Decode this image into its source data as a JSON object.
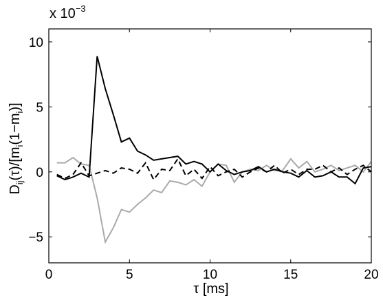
{
  "chart_data": {
    "type": "line",
    "title": "",
    "xlabel": "τ [ms]",
    "ylabel_parts": {
      "main1": "D",
      "sub1": "ij",
      "main2": "(τ)/[m",
      "sub2": "i",
      "main3": "(1−m",
      "sub3": "i",
      "main4": ")]"
    },
    "exponent_label": {
      "base": "x 10",
      "power": "−3"
    },
    "xlim": [
      0,
      20
    ],
    "ylim": [
      -7,
      11
    ],
    "x_ticks": [
      0,
      5,
      10,
      15,
      20
    ],
    "x_tick_labels": [
      "0",
      "5",
      "10",
      "15",
      "20"
    ],
    "y_ticks": [
      -5,
      0,
      5,
      10
    ],
    "y_tick_labels": [
      "−5",
      "0",
      "5",
      "10"
    ],
    "grid": false,
    "legend": "none",
    "series": [
      {
        "color": "#000000",
        "style": "solid",
        "x": [
          0.5,
          1.0,
          1.5,
          2.0,
          2.5,
          3.0,
          3.5,
          4.0,
          4.5,
          5.0,
          5.5,
          6.0,
          6.5,
          7.0,
          7.5,
          8.0,
          8.5,
          9.0,
          9.5,
          10.0,
          10.5,
          11.0,
          11.5,
          12.0,
          12.5,
          13.0,
          13.5,
          14.0,
          14.5,
          15.0,
          15.5,
          16.0,
          16.5,
          17.0,
          17.5,
          18.0,
          18.5,
          19.0,
          19.5,
          20.0
        ],
        "y": [
          -0.3,
          -0.6,
          -0.4,
          -0.1,
          -0.4,
          8.9,
          6.4,
          4.4,
          2.3,
          2.6,
          1.6,
          1.3,
          0.9,
          1.0,
          1.1,
          1.2,
          0.6,
          0.8,
          0.6,
          0.0,
          0.6,
          0.1,
          -0.2,
          0.0,
          0.1,
          0.4,
          0.0,
          0.2,
          0.0,
          -0.1,
          -0.4,
          0.1,
          -0.4,
          -0.3,
          0.0,
          -0.4,
          -0.4,
          -0.9,
          0.3,
          0.4
        ]
      },
      {
        "color": "#000000",
        "style": "dashed",
        "x": [
          0.5,
          1.0,
          1.5,
          2.0,
          2.5,
          3.0,
          3.5,
          4.0,
          4.5,
          5.0,
          5.5,
          6.0,
          6.5,
          7.0,
          7.5,
          8.0,
          8.5,
          9.0,
          9.5,
          10.0,
          10.5,
          11.0,
          11.5,
          12.0,
          12.5,
          13.0,
          13.5,
          14.0,
          14.5,
          15.0,
          15.5,
          16.0,
          16.5,
          17.0,
          17.5,
          18.0,
          18.5,
          19.0,
          19.5,
          20.0
        ],
        "y": [
          -0.2,
          -0.5,
          -0.2,
          0.7,
          -0.3,
          -0.1,
          0.1,
          -0.1,
          0.3,
          0.2,
          -0.1,
          0.7,
          -0.6,
          0.2,
          0.1,
          1.0,
          -0.3,
          0.2,
          -0.5,
          0.4,
          -0.3,
          0.0,
          0.2,
          -0.4,
          0.0,
          0.3,
          0.0,
          0.5,
          -0.1,
          0.2,
          -0.2,
          0.2,
          0.2,
          0.5,
          0.0,
          0.3,
          -0.2,
          0.2,
          0.5,
          0.0
        ]
      },
      {
        "color": "#aaaaaa",
        "style": "solid",
        "x": [
          0.5,
          1.0,
          1.5,
          2.0,
          2.5,
          3.0,
          3.5,
          4.0,
          4.5,
          5.0,
          5.5,
          6.0,
          6.5,
          7.0,
          7.5,
          8.0,
          8.5,
          9.0,
          9.5,
          10.0,
          10.5,
          11.0,
          11.5,
          12.0,
          12.5,
          13.0,
          13.5,
          14.0,
          14.5,
          15.0,
          15.5,
          16.0,
          16.5,
          17.0,
          17.5,
          18.0,
          18.5,
          19.0,
          19.5,
          20.0
        ],
        "y": [
          0.7,
          0.7,
          1.1,
          0.6,
          0.5,
          -2.0,
          -5.4,
          -4.3,
          -2.9,
          -3.1,
          -2.5,
          -2.0,
          -1.4,
          -1.6,
          -0.7,
          -0.8,
          -1.0,
          -0.6,
          -1.1,
          0.0,
          0.6,
          0.5,
          -0.8,
          0.0,
          0.2,
          0.1,
          0.5,
          0.1,
          0.1,
          1.0,
          0.3,
          0.8,
          0.0,
          0.2,
          0.5,
          0.1,
          0.3,
          0.5,
          0.0,
          0.8
        ]
      }
    ]
  }
}
